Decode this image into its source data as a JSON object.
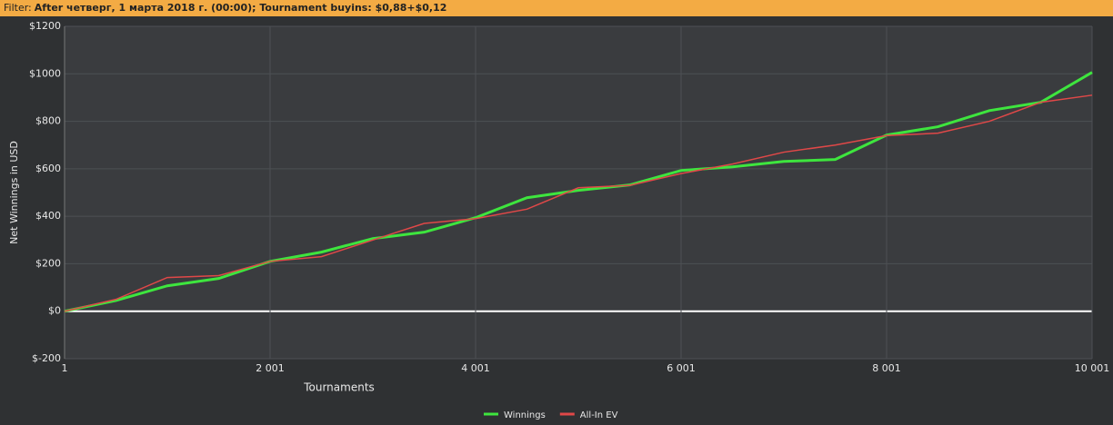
{
  "header": {
    "filter_label": "Filter:",
    "filter_value": "After четверг, 1 марта 2018 г. (00:00); Tournament buyins: $0,88+$0,12"
  },
  "chart_data": {
    "type": "line",
    "x_label": "Tournaments",
    "y_label": "Net Winnings in USD",
    "x": [
      1,
      501,
      1001,
      1501,
      2001,
      2501,
      3001,
      3501,
      4001,
      4501,
      5001,
      5501,
      6001,
      6501,
      7001,
      7501,
      8001,
      8501,
      9001,
      9501,
      10001
    ],
    "series": [
      {
        "name": "Winnings",
        "color": "#3ee53e",
        "values": [
          0,
          45,
          107,
          138,
          210,
          249,
          306,
          333,
          394,
          478,
          509,
          532,
          593,
          608,
          631,
          639,
          742,
          777,
          845,
          880,
          1006
        ]
      },
      {
        "name": "All-In EV",
        "color": "#e04848",
        "values": [
          0,
          50,
          142,
          150,
          210,
          230,
          300,
          370,
          390,
          430,
          520,
          530,
          580,
          620,
          670,
          700,
          740,
          750,
          800,
          880,
          910
        ]
      }
    ],
    "xlim": [
      1,
      10001
    ],
    "xticks": [
      1,
      {
        "value": 2001,
        "label": "2 001"
      },
      {
        "value": 4001,
        "label": "4 001"
      },
      {
        "value": 6001,
        "label": "6 001"
      },
      {
        "value": 8001,
        "label": "8 001"
      },
      {
        "value": 10001,
        "label": "10 001"
      }
    ],
    "ylim": [
      -200,
      1200
    ],
    "yticks": [
      {
        "value": -200,
        "label": "$-200"
      },
      {
        "value": 0,
        "label": "$0"
      },
      {
        "value": 200,
        "label": "$200"
      },
      {
        "value": 400,
        "label": "$400"
      },
      {
        "value": 600,
        "label": "$600"
      },
      {
        "value": 800,
        "label": "$800"
      },
      {
        "value": 1000,
        "label": "$1000"
      },
      {
        "value": 1200,
        "label": "$1200"
      }
    ],
    "grid": true
  }
}
